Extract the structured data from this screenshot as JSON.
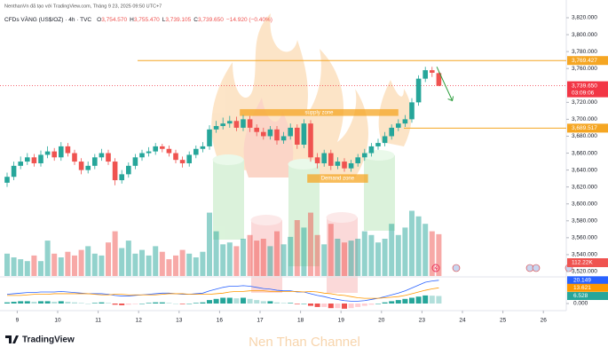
{
  "chart_data": {
    "type": "candlestick",
    "header": {
      "credit": "NenthanVn đã tạo với TradingView.com, Tháng 9 23, 2025 09:50 UTC+7",
      "symbol": "CFDs VÀNG (US$/OZ) · 4h · TVC",
      "ohlc": [
        {
          "label": "O",
          "value": "3,754.570"
        },
        {
          "label": "H",
          "value": "3,755.470"
        },
        {
          "label": "L",
          "value": "3,739.105"
        },
        {
          "label": "C",
          "value": "3,739.650"
        }
      ],
      "change": "−14.920 (−0.40%)"
    },
    "up_color": "#26a69a",
    "down_color": "#ef5350",
    "open": [
      3625,
      3632,
      3645,
      3650,
      3655,
      3648,
      3658,
      3662,
      3655,
      3668,
      3660,
      3650,
      3640,
      3645,
      3655,
      3660,
      3650,
      3628,
      3635,
      3645,
      3655,
      3660,
      3662,
      3668,
      3665,
      3660,
      3652,
      3648,
      3658,
      3665,
      3668,
      3688,
      3692,
      3695,
      3698,
      3690,
      3700,
      3690,
      3685,
      3680,
      3688,
      3675,
      3680,
      3690,
      3670,
      3695,
      3655,
      3648,
      3660,
      3645,
      3650,
      3642,
      3648,
      3655,
      3660,
      3668,
      3672,
      3680,
      3690,
      3695,
      3700,
      3720,
      3748,
      3758,
      3754.57
    ],
    "high": [
      3637,
      3650,
      3656,
      3660,
      3659,
      3663,
      3668,
      3666,
      3673,
      3672,
      3664,
      3654,
      3650,
      3659,
      3665,
      3664,
      3654,
      3640,
      3649,
      3659,
      3664,
      3667,
      3672,
      3671,
      3669,
      3664,
      3656,
      3662,
      3669,
      3673,
      3693,
      3698,
      3702,
      3704,
      3703,
      3705,
      3704,
      3694,
      3690,
      3692,
      3692,
      3685,
      3695,
      3694,
      3700,
      3699,
      3660,
      3664,
      3664,
      3655,
      3654,
      3652,
      3659,
      3665,
      3672,
      3677,
      3685,
      3694,
      3700,
      3705,
      3725,
      3752,
      3762,
      3762,
      3755.47
    ],
    "low": [
      3620,
      3628,
      3641,
      3646,
      3644,
      3644,
      3654,
      3651,
      3651,
      3656,
      3646,
      3635,
      3636,
      3641,
      3651,
      3646,
      3622,
      3624,
      3631,
      3641,
      3651,
      3656,
      3658,
      3661,
      3656,
      3648,
      3643,
      3644,
      3654,
      3661,
      3664,
      3684,
      3688,
      3690,
      3686,
      3686,
      3685,
      3680,
      3676,
      3676,
      3670,
      3671,
      3676,
      3665,
      3666,
      3650,
      3642,
      3644,
      3640,
      3641,
      3638,
      3638,
      3644,
      3651,
      3656,
      3664,
      3668,
      3676,
      3686,
      3691,
      3696,
      3716,
      3744,
      3750,
      3739.105
    ],
    "close": [
      3632,
      3645,
      3650,
      3655,
      3648,
      3658,
      3662,
      3655,
      3668,
      3660,
      3650,
      3640,
      3645,
      3655,
      3660,
      3650,
      3628,
      3635,
      3645,
      3655,
      3660,
      3662,
      3668,
      3665,
      3660,
      3652,
      3648,
      3658,
      3665,
      3668,
      3688,
      3692,
      3695,
      3698,
      3690,
      3700,
      3690,
      3685,
      3680,
      3688,
      3675,
      3680,
      3690,
      3670,
      3695,
      3655,
      3648,
      3660,
      3645,
      3650,
      3642,
      3648,
      3655,
      3660,
      3668,
      3672,
      3680,
      3690,
      3695,
      3700,
      3720,
      3748,
      3758,
      3755,
      3739.65
    ],
    "ylim": [
      3520,
      3820
    ],
    "yticks": [
      {
        "value": 3820,
        "label": "3,820.000"
      },
      {
        "value": 3800,
        "label": "3,800.000"
      },
      {
        "value": 3780,
        "label": "3,780.000"
      },
      {
        "value": 3760,
        "label": "3,760.000"
      },
      {
        "value": 3720,
        "label": "3,720.000"
      },
      {
        "value": 3700,
        "label": "3,700.000"
      },
      {
        "value": 3680,
        "label": "3,680.000"
      },
      {
        "value": 3660,
        "label": "3,660.000"
      },
      {
        "value": 3640,
        "label": "3,640.000"
      },
      {
        "value": 3620,
        "label": "3,620.000"
      },
      {
        "value": 3600,
        "label": "3,600.000"
      },
      {
        "value": 3580,
        "label": "3,580.000"
      },
      {
        "value": 3560,
        "label": "3,560.000"
      },
      {
        "value": 3540,
        "label": "3,540.000"
      },
      {
        "value": 3520,
        "label": "3,520.000"
      }
    ],
    "xticks": [
      {
        "value": 1.5,
        "label": "9"
      },
      {
        "value": 7.5,
        "label": "10"
      },
      {
        "value": 13.5,
        "label": "11"
      },
      {
        "value": 19.5,
        "label": "12"
      },
      {
        "value": 25.5,
        "label": "13"
      },
      {
        "value": 31.5,
        "label": "16"
      },
      {
        "value": 37.5,
        "label": "17"
      },
      {
        "value": 43.5,
        "label": "18"
      },
      {
        "value": 49.5,
        "label": "19"
      },
      {
        "value": 55.5,
        "label": "20"
      },
      {
        "value": 61.5,
        "label": "23"
      },
      {
        "value": 67.5,
        "label": "24"
      },
      {
        "value": 73.5,
        "label": "25"
      },
      {
        "value": 79.5,
        "label": "26"
      }
    ],
    "price_lines": [
      {
        "value": 3769.427,
        "label": "3,769.427",
        "color": "#f5a623"
      },
      {
        "value": 3689.517,
        "label": "3,689.517",
        "color": "#f5a623"
      }
    ],
    "last_price": {
      "value": 3739.65,
      "label": "3,739.650",
      "countdown": "03:09:06",
      "color": "#f23645"
    },
    "zones": [
      {
        "label": "supply zone",
        "top": 3712,
        "bottom": 3704,
        "start": 34.5,
        "end": 58,
        "color": "#f5a623"
      },
      {
        "label": "Demand zone",
        "top": 3635,
        "bottom": 3625,
        "start": 44.5,
        "end": 53.5,
        "color": "#f5a623"
      }
    ],
    "arrow": {
      "color": "#2e9e3e",
      "from": [
        63.7,
        3762
      ],
      "to": [
        66,
        3722
      ]
    },
    "volume": {
      "values": [
        60,
        50,
        45,
        40,
        55,
        40,
        95,
        60,
        50,
        65,
        55,
        70,
        80,
        60,
        55,
        90,
        120,
        75,
        95,
        60,
        70,
        55,
        80,
        65,
        45,
        55,
        70,
        60,
        50,
        65,
        170,
        120,
        85,
        90,
        80,
        100,
        110,
        95,
        100,
        80,
        120,
        85,
        105,
        150,
        130,
        170,
        110,
        85,
        140,
        100,
        90,
        95,
        100,
        120,
        110,
        90,
        100,
        140,
        110,
        130,
        175,
        160,
        140,
        120,
        112.22
      ],
      "value_label": "112.22K"
    },
    "macd": {
      "hist": {
        "values": [
          1,
          1.5,
          2,
          2,
          1.5,
          2,
          2,
          1.5,
          2,
          1.5,
          1,
          0.5,
          0,
          0.5,
          1,
          0.5,
          -1,
          -1.5,
          -1,
          -0.5,
          0,
          0.5,
          1,
          1,
          0.5,
          0,
          -0.5,
          0,
          0.5,
          1,
          3,
          4,
          5,
          5,
          4.5,
          5,
          4,
          3,
          2,
          2,
          1,
          0.5,
          0.5,
          -0.5,
          0,
          -2,
          -3,
          -3,
          -4,
          -4,
          -4.5,
          -4,
          -3,
          -2,
          -1,
          0,
          1,
          2,
          3,
          4,
          5,
          6,
          7,
          6.8,
          6.528
        ],
        "value_label": "6.528",
        "color": "#26a69a"
      },
      "macd": {
        "values": [
          8,
          8.5,
          9,
          9.5,
          9.5,
          10,
          10,
          10,
          10.5,
          10,
          9.5,
          9,
          8.5,
          8.5,
          8.5,
          8,
          7,
          6.5,
          6.5,
          7,
          7.5,
          8,
          8.5,
          9,
          9,
          8.5,
          8,
          8,
          8.5,
          9,
          11,
          12.5,
          14,
          15,
          15,
          15.5,
          15,
          14,
          13,
          12.5,
          11.5,
          11,
          11,
          10,
          10,
          8.5,
          7,
          6,
          4.5,
          3.5,
          2.5,
          2,
          2,
          2.5,
          3.5,
          4.5,
          6,
          7.5,
          9,
          11,
          13.5,
          16,
          18.5,
          19.5,
          20.149
        ],
        "value_label": "20.149",
        "color": "#2962ff"
      },
      "signal": {
        "values": [
          7,
          7,
          7,
          7.5,
          8,
          8,
          8,
          8.5,
          8.5,
          8.5,
          8.5,
          8.5,
          8.5,
          8,
          7.5,
          7.5,
          8,
          8,
          7.5,
          7.5,
          7.5,
          7.5,
          7.5,
          8,
          8.5,
          8.5,
          8.5,
          8,
          8,
          8,
          8,
          8.5,
          9,
          10,
          10.5,
          10.5,
          11,
          11,
          11,
          10.5,
          10.5,
          10.5,
          10.5,
          10.5,
          10,
          10.5,
          10,
          9,
          8.5,
          7.5,
          7,
          6,
          5,
          4.5,
          4.5,
          4.5,
          5,
          5.5,
          6,
          7,
          8.5,
          10,
          11.5,
          12.7,
          13.621
        ],
        "value_label": "13.621",
        "color": "#ff9800"
      },
      "yticks": [
        {
          "value": 0,
          "label": "0.000"
        }
      ]
    },
    "watermark": "Nen Than Channel",
    "logo": "TradingView"
  }
}
